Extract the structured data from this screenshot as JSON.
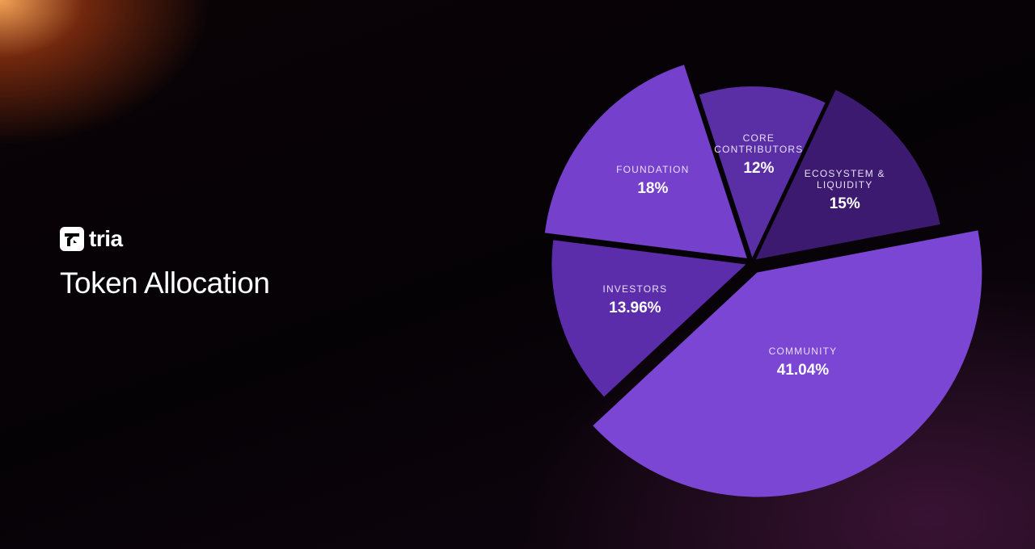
{
  "brand": "tria",
  "chart_data": {
    "type": "pie",
    "title": "Token Allocation",
    "categories": [
      "CORE CONTRIBUTORS",
      "ECOSYSTEM & LIQUIDITY",
      "COMMUNITY",
      "INVESTORS",
      "FOUNDATION"
    ],
    "values": [
      12,
      15,
      41.04,
      13.96,
      18
    ],
    "value_labels": [
      "12%",
      "15%",
      "41.04%",
      "13.96%",
      "18%"
    ],
    "colors": [
      "#5a2fa6",
      "#3b1a70",
      "#7b46d4",
      "#5c2dab",
      "#7440cc"
    ]
  }
}
